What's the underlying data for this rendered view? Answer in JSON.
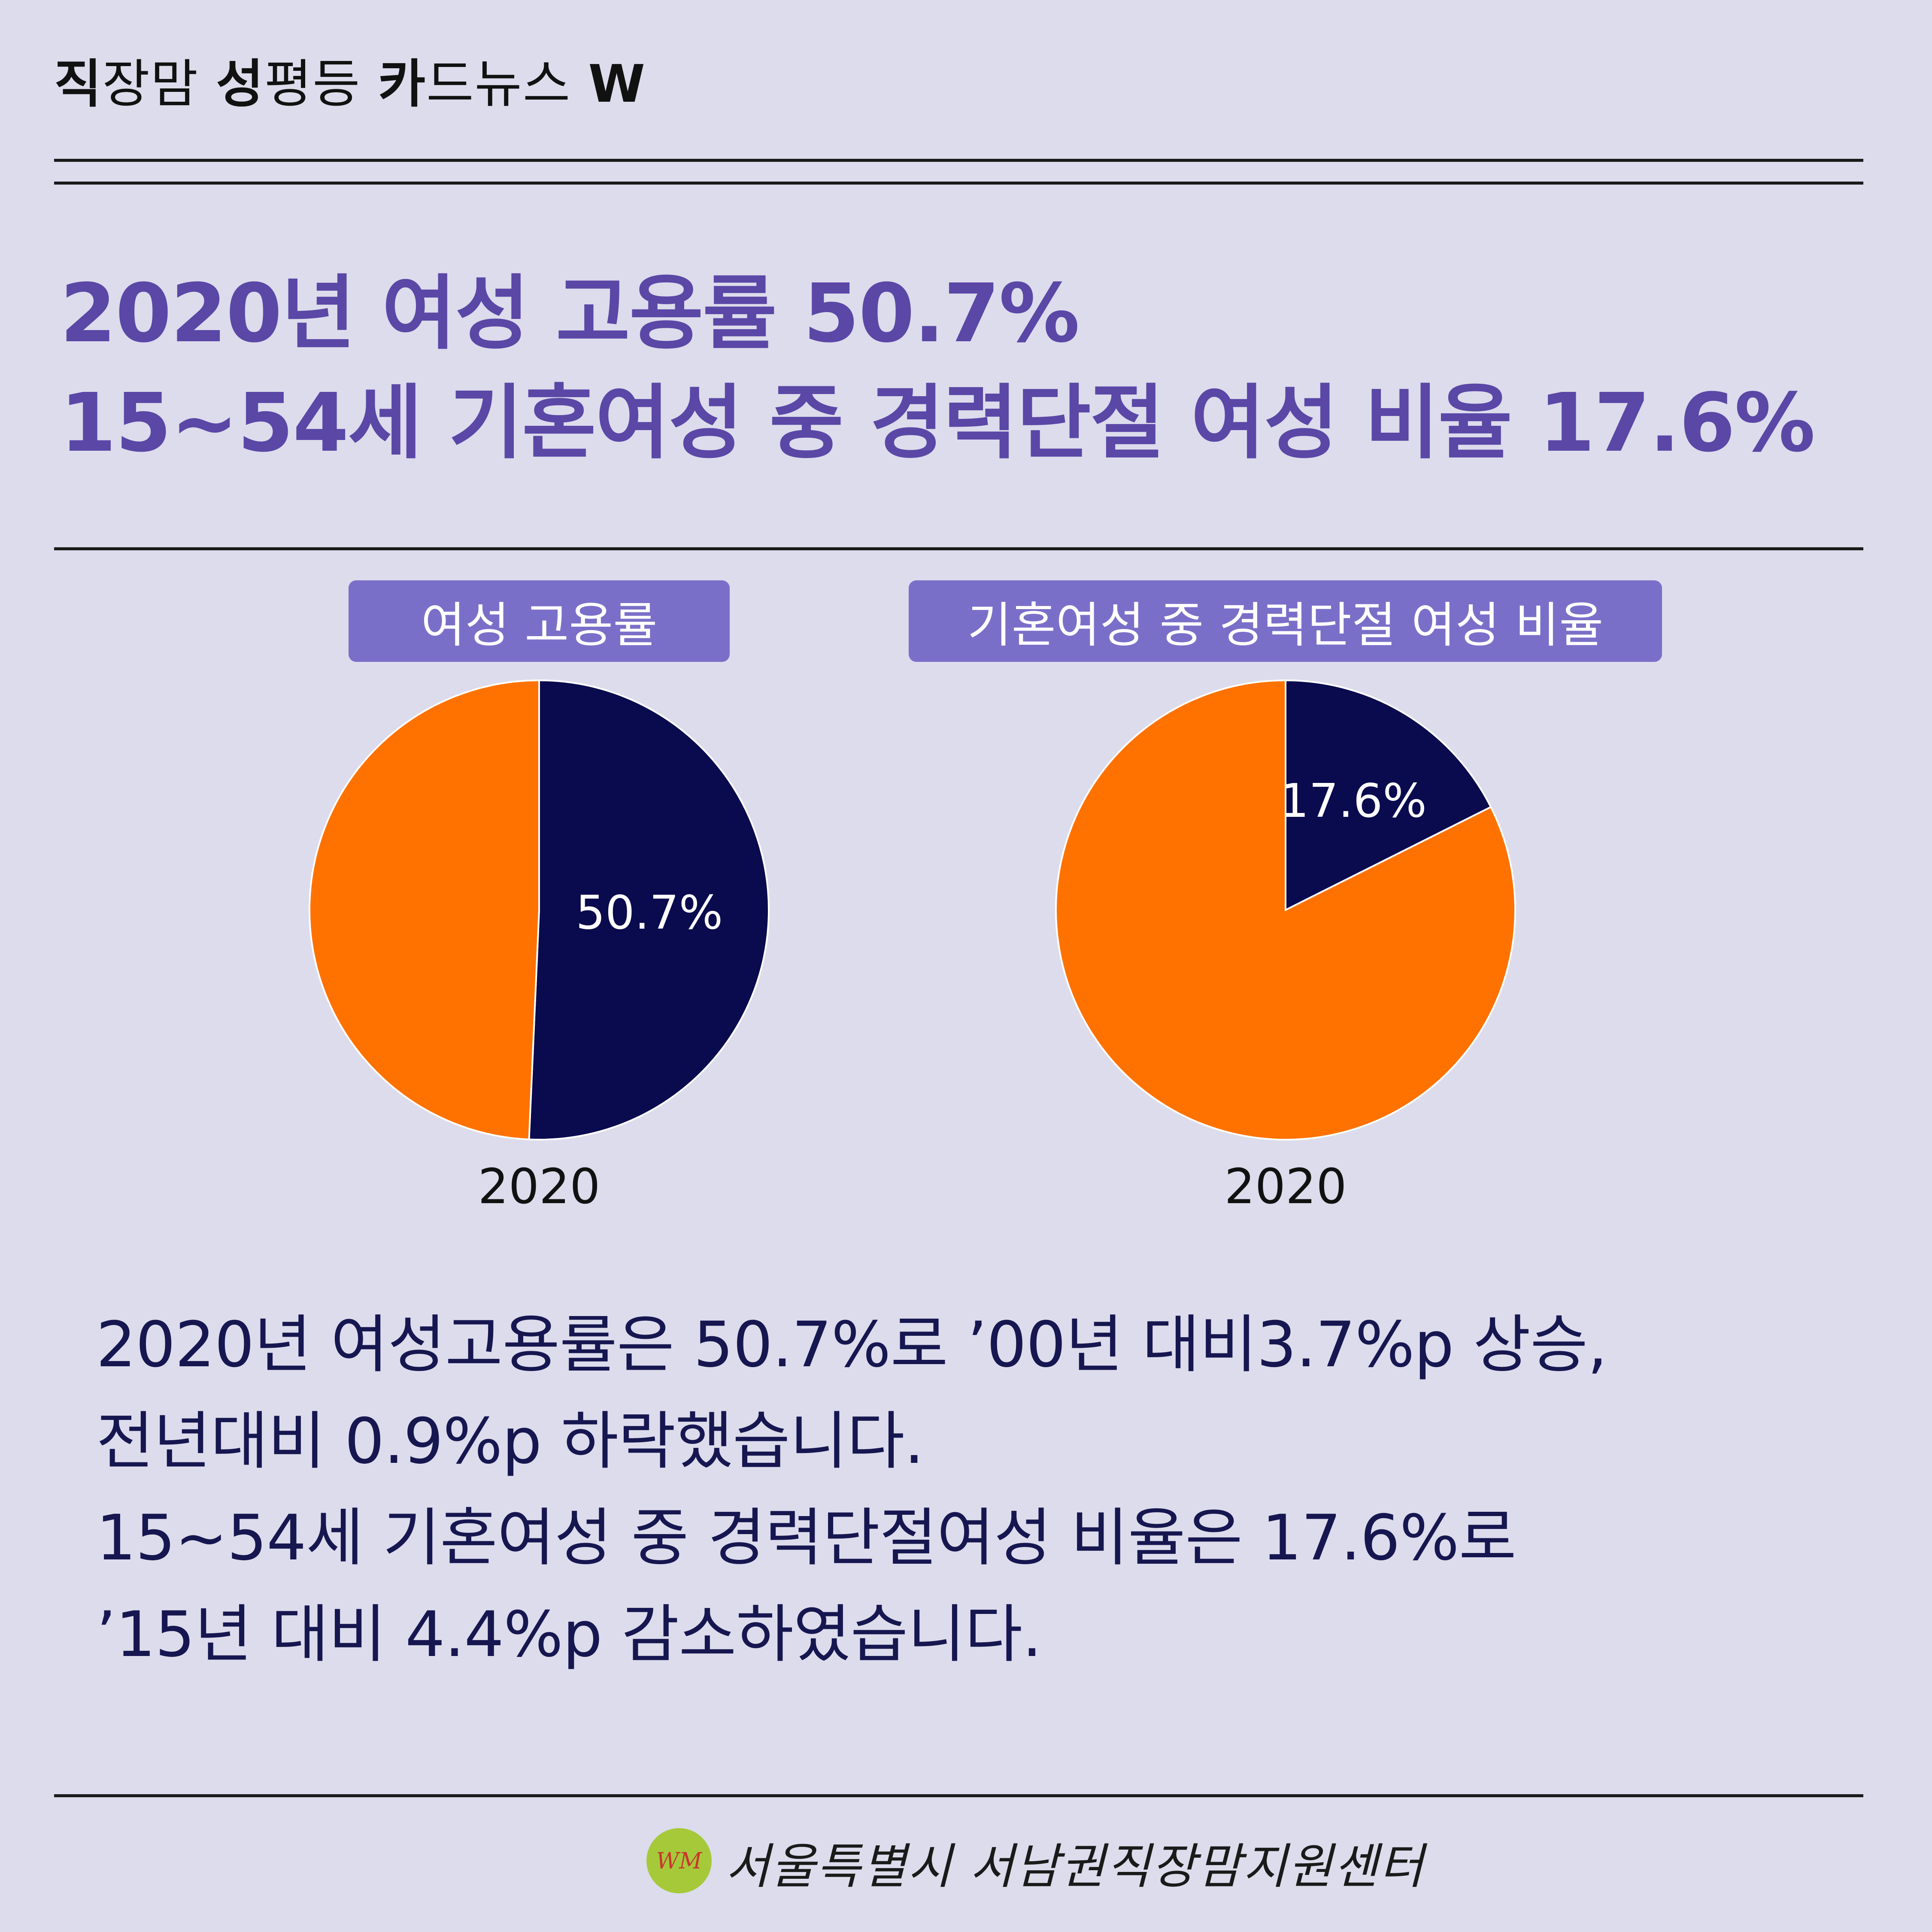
{
  "header": {
    "series_parts": [
      {
        "text": "직",
        "bold": true
      },
      {
        "text": "장맘 ",
        "bold": false
      },
      {
        "text": "성",
        "bold": true
      },
      {
        "text": "평등 ",
        "bold": false
      },
      {
        "text": "카",
        "bold": true
      },
      {
        "text": "드뉴스 ",
        "bold": false
      },
      {
        "text": "W",
        "bold": true
      }
    ]
  },
  "headline": {
    "line1": "2020년 여성 고용률 50.7%",
    "line2": "15~54세 기혼여성 중 경력단절 여성 비율 17.6%"
  },
  "chart_data": [
    {
      "type": "pie",
      "title": "여성 고용률",
      "xlabel": "2020",
      "slices": [
        {
          "label": "50.7%",
          "value": 50.7,
          "color": "#0a0a4f"
        },
        {
          "label": "",
          "value": 49.3,
          "color": "#ff7200"
        }
      ]
    },
    {
      "type": "pie",
      "title": "기혼여성 중 경력단절 여성 비율",
      "xlabel": "2020",
      "slices": [
        {
          "label": "17.6%",
          "value": 17.6,
          "color": "#0a0a4f"
        },
        {
          "label": "",
          "value": 82.4,
          "color": "#ff7200"
        }
      ]
    }
  ],
  "body": {
    "lines": [
      "2020년 여성고용률은 50.7%로 ’00년 대비3.7%p 상승,",
      "전년대비 0.9%p 하락했습니다.",
      "15~54세 기혼여성 중 경력단절여성 비율은 17.6%로",
      "’15년 대비 4.4%p 감소하였습니다."
    ]
  },
  "footer": {
    "org_name": "서울특별시 서남권직장맘지원센터",
    "logo_text": "WM"
  },
  "colors": {
    "background": "#dcdcec",
    "headline": "#5a47a6",
    "tag": "#7a6fc8",
    "navy": "#0a0a4f",
    "orange": "#ff7200"
  }
}
